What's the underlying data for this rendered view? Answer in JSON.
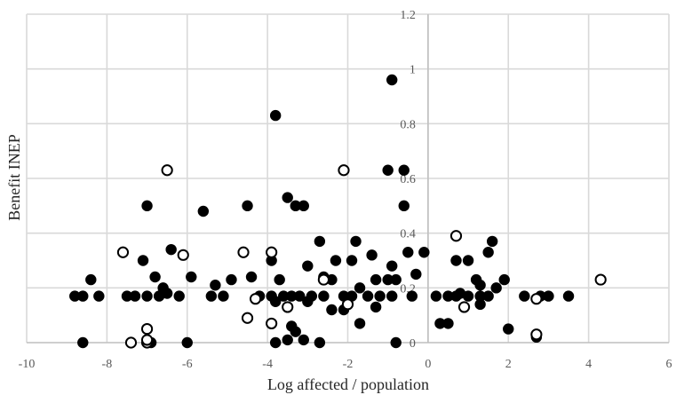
{
  "chart_data": {
    "type": "scatter",
    "title": "",
    "xlabel": "Log affected / population",
    "ylabel": "Benefit INEP",
    "xlim": [
      -10,
      6
    ],
    "ylim": [
      0,
      1.2
    ],
    "x_ticks": [
      -10,
      -8,
      -6,
      -4,
      -2,
      0,
      2,
      4,
      6
    ],
    "x_tick_labels": [
      "-10",
      "-8",
      "-6",
      "-4",
      "-2",
      "0",
      "2",
      "4",
      "6"
    ],
    "y_ticks": [
      0,
      0.2,
      0.4,
      0.6,
      0.8,
      1,
      1.2
    ],
    "y_tick_labels": [
      "0",
      "0.2",
      "0.4",
      "0.6",
      "0.8",
      "1",
      "1.2"
    ],
    "grid": true,
    "colors": {
      "marker": "#000000",
      "grid": "#d9d9d9",
      "tick_text": "#595959",
      "axis_title": "#262626"
    },
    "series": [
      {
        "marker": "filled",
        "points": [
          [
            -0.9,
            0.96
          ],
          [
            -3.8,
            0.83
          ],
          [
            -1.0,
            0.63
          ],
          [
            -0.6,
            0.63
          ],
          [
            -7.0,
            0.5
          ],
          [
            -5.6,
            0.48
          ],
          [
            -4.5,
            0.5
          ],
          [
            -3.5,
            0.53
          ],
          [
            -3.3,
            0.5
          ],
          [
            -3.1,
            0.5
          ],
          [
            -0.6,
            0.5
          ],
          [
            -6.4,
            0.34
          ],
          [
            -2.7,
            0.37
          ],
          [
            -1.8,
            0.37
          ],
          [
            1.6,
            0.37
          ],
          [
            -7.1,
            0.3
          ],
          [
            -3.9,
            0.3
          ],
          [
            -2.3,
            0.3
          ],
          [
            -1.9,
            0.3
          ],
          [
            -1.4,
            0.32
          ],
          [
            -0.9,
            0.28
          ],
          [
            -0.5,
            0.33
          ],
          [
            -0.3,
            0.25
          ],
          [
            -0.1,
            0.33
          ],
          [
            0.7,
            0.3
          ],
          [
            1.0,
            0.3
          ],
          [
            1.5,
            0.33
          ],
          [
            -8.4,
            0.23
          ],
          [
            -6.8,
            0.24
          ],
          [
            -6.6,
            0.2
          ],
          [
            -6.5,
            0.18
          ],
          [
            -5.9,
            0.24
          ],
          [
            -5.3,
            0.21
          ],
          [
            -4.9,
            0.23
          ],
          [
            -4.4,
            0.24
          ],
          [
            -3.7,
            0.23
          ],
          [
            -3.0,
            0.28
          ],
          [
            -2.6,
            0.24
          ],
          [
            -2.4,
            0.23
          ],
          [
            -1.7,
            0.2
          ],
          [
            -1.3,
            0.23
          ],
          [
            -1.0,
            0.23
          ],
          [
            -0.8,
            0.23
          ],
          [
            0.8,
            0.18
          ],
          [
            1.2,
            0.23
          ],
          [
            1.3,
            0.21
          ],
          [
            1.7,
            0.2
          ],
          [
            1.9,
            0.23
          ],
          [
            -8.8,
            0.17
          ],
          [
            -8.6,
            0.17
          ],
          [
            -8.2,
            0.17
          ],
          [
            -7.5,
            0.17
          ],
          [
            -7.3,
            0.17
          ],
          [
            -7.0,
            0.17
          ],
          [
            -6.7,
            0.17
          ],
          [
            -6.2,
            0.17
          ],
          [
            -5.4,
            0.17
          ],
          [
            -5.1,
            0.17
          ],
          [
            -4.2,
            0.17
          ],
          [
            -3.9,
            0.17
          ],
          [
            -3.6,
            0.17
          ],
          [
            -3.4,
            0.17
          ],
          [
            -3.2,
            0.17
          ],
          [
            -2.9,
            0.17
          ],
          [
            -2.6,
            0.17
          ],
          [
            -2.1,
            0.17
          ],
          [
            -1.9,
            0.17
          ],
          [
            -1.5,
            0.17
          ],
          [
            -1.2,
            0.17
          ],
          [
            -0.9,
            0.17
          ],
          [
            -0.4,
            0.17
          ],
          [
            0.2,
            0.17
          ],
          [
            0.5,
            0.17
          ],
          [
            0.7,
            0.17
          ],
          [
            1.0,
            0.17
          ],
          [
            1.3,
            0.17
          ],
          [
            1.5,
            0.17
          ],
          [
            2.4,
            0.17
          ],
          [
            2.8,
            0.17
          ],
          [
            3.0,
            0.17
          ],
          [
            3.5,
            0.17
          ],
          [
            1.3,
            0.14
          ],
          [
            -3.8,
            0.15
          ],
          [
            -3.0,
            0.15
          ],
          [
            -2.4,
            0.12
          ],
          [
            -2.1,
            0.12
          ],
          [
            -1.7,
            0.07
          ],
          [
            -1.3,
            0.13
          ],
          [
            0.3,
            0.07
          ],
          [
            0.5,
            0.07
          ],
          [
            -3.4,
            0.06
          ],
          [
            -3.3,
            0.04
          ],
          [
            -3.5,
            0.01
          ],
          [
            -3.1,
            0.01
          ],
          [
            -3.8,
            0.0
          ],
          [
            -2.7,
            0.0
          ],
          [
            -0.8,
            0.0
          ],
          [
            -8.6,
            0.0
          ],
          [
            -6.9,
            0.0
          ],
          [
            -6.0,
            0.0
          ],
          [
            2.0,
            0.05
          ],
          [
            2.7,
            0.02
          ]
        ]
      },
      {
        "marker": "open",
        "points": [
          [
            -6.5,
            0.63
          ],
          [
            -2.1,
            0.63
          ],
          [
            0.7,
            0.39
          ],
          [
            -7.6,
            0.33
          ],
          [
            -6.1,
            0.32
          ],
          [
            -4.6,
            0.33
          ],
          [
            -3.9,
            0.33
          ],
          [
            4.3,
            0.23
          ],
          [
            -2.6,
            0.23
          ],
          [
            -4.3,
            0.16
          ],
          [
            -3.5,
            0.13
          ],
          [
            0.9,
            0.13
          ],
          [
            -2.0,
            0.14
          ],
          [
            2.7,
            0.16
          ],
          [
            -4.5,
            0.09
          ],
          [
            -3.9,
            0.07
          ],
          [
            -7.0,
            0.05
          ],
          [
            -7.4,
            0.0
          ],
          [
            -7.0,
            0.0
          ],
          [
            -7.0,
            0.01
          ],
          [
            2.7,
            0.03
          ]
        ]
      }
    ]
  }
}
